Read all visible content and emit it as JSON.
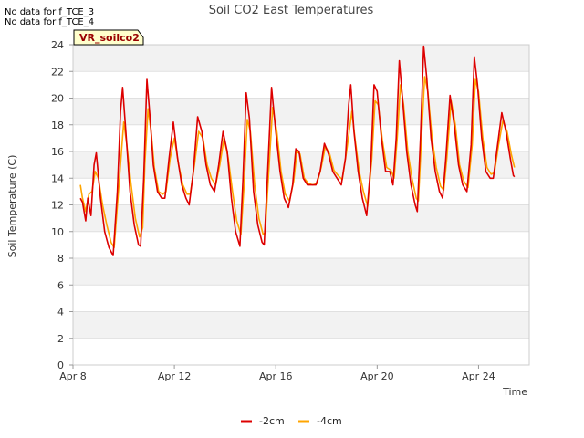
{
  "no_data_messages": [
    "No data for f_TCE_3",
    "No data for f_TCE_4"
  ],
  "badge": "VR_soilco2",
  "chart_data": {
    "type": "line",
    "title": "Soil CO2 East Temperatures",
    "xlabel": "Time",
    "ylabel": "Soil Temperature (C)",
    "xlim": [
      "2024-04-08",
      "2024-04-26"
    ],
    "ylim": [
      0,
      24
    ],
    "yticks": [
      0,
      2,
      4,
      6,
      8,
      10,
      12,
      14,
      16,
      18,
      20,
      22,
      24
    ],
    "xticks": [
      {
        "date": "2024-04-08",
        "label": "Apr 8"
      },
      {
        "date": "2024-04-12",
        "label": "Apr 12"
      },
      {
        "date": "2024-04-16",
        "label": "Apr 16"
      },
      {
        "date": "2024-04-20",
        "label": "Apr 20"
      },
      {
        "date": "2024-04-24",
        "label": "Apr 24"
      }
    ],
    "grid": true,
    "banded_background": true,
    "legend_position": "bottom-center",
    "series": [
      {
        "name": "-2cm",
        "color": "#dd0000",
        "points": [
          [
            "2024-04-08 07:00",
            12.5
          ],
          [
            "2024-04-08 09:00",
            12.2
          ],
          [
            "2024-04-08 12:00",
            10.8
          ],
          [
            "2024-04-08 14:00",
            12.5
          ],
          [
            "2024-04-08 17:00",
            11.2
          ],
          [
            "2024-04-08 20:00",
            15.0
          ],
          [
            "2024-04-08 22:00",
            15.9
          ],
          [
            "2024-04-09 02:00",
            12.5
          ],
          [
            "2024-04-09 06:00",
            10.0
          ],
          [
            "2024-04-09 10:00",
            8.8
          ],
          [
            "2024-04-09 14:00",
            8.2
          ],
          [
            "2024-04-09 18:00",
            13.0
          ],
          [
            "2024-04-09 21:00",
            19.0
          ],
          [
            "2024-04-09 23:00",
            20.8
          ],
          [
            "2024-04-10 02:00",
            17.5
          ],
          [
            "2024-04-10 06:00",
            13.0
          ],
          [
            "2024-04-10 10:00",
            10.5
          ],
          [
            "2024-04-10 14:00",
            9.0
          ],
          [
            "2024-04-10 16:00",
            8.9
          ],
          [
            "2024-04-10 19:00",
            14.0
          ],
          [
            "2024-04-10 22:00",
            21.4
          ],
          [
            "2024-04-11 01:00",
            18.5
          ],
          [
            "2024-04-11 04:00",
            15.0
          ],
          [
            "2024-04-11 08:00",
            13.0
          ],
          [
            "2024-04-11 12:00",
            12.5
          ],
          [
            "2024-04-11 15:00",
            12.5
          ],
          [
            "2024-04-11 19:00",
            15.5
          ],
          [
            "2024-04-11 23:00",
            18.2
          ],
          [
            "2024-04-12 03:00",
            15.5
          ],
          [
            "2024-04-12 07:00",
            13.5
          ],
          [
            "2024-04-12 11:00",
            12.5
          ],
          [
            "2024-04-12 14:00",
            12.0
          ],
          [
            "2024-04-12 18:00",
            14.5
          ],
          [
            "2024-04-12 22:00",
            18.6
          ],
          [
            "2024-04-13 02:00",
            17.5
          ],
          [
            "2024-04-13 06:00",
            15.0
          ],
          [
            "2024-04-13 10:00",
            13.5
          ],
          [
            "2024-04-13 14:00",
            13.0
          ],
          [
            "2024-04-13 18:00",
            15.0
          ],
          [
            "2024-04-13 22:00",
            17.5
          ],
          [
            "2024-04-14 02:00",
            16.0
          ],
          [
            "2024-04-14 06:00",
            12.5
          ],
          [
            "2024-04-14 10:00",
            10.0
          ],
          [
            "2024-04-14 14:00",
            8.9
          ],
          [
            "2024-04-14 17:00",
            14.0
          ],
          [
            "2024-04-14 20:00",
            20.4
          ],
          [
            "2024-04-14 23:00",
            18.5
          ],
          [
            "2024-04-15 03:00",
            13.0
          ],
          [
            "2024-04-15 07:00",
            10.5
          ],
          [
            "2024-04-15 11:00",
            9.2
          ],
          [
            "2024-04-15 13:00",
            9.0
          ],
          [
            "2024-04-15 16:00",
            14.0
          ],
          [
            "2024-04-15 20:00",
            20.8
          ],
          [
            "2024-04-16 00:00",
            17.5
          ],
          [
            "2024-04-16 04:00",
            14.5
          ],
          [
            "2024-04-16 08:00",
            12.5
          ],
          [
            "2024-04-16 12:00",
            11.8
          ],
          [
            "2024-04-16 16:00",
            13.5
          ],
          [
            "2024-04-16 19:00",
            16.2
          ],
          [
            "2024-04-16 22:00",
            16.0
          ],
          [
            "2024-04-17 02:00",
            14.0
          ],
          [
            "2024-04-17 06:00",
            13.5
          ],
          [
            "2024-04-17 10:00",
            13.5
          ],
          [
            "2024-04-17 14:00",
            13.5
          ],
          [
            "2024-04-17 18:00",
            14.5
          ],
          [
            "2024-04-17 22:00",
            16.6
          ],
          [
            "2024-04-18 02:00",
            15.8
          ],
          [
            "2024-04-18 06:00",
            14.5
          ],
          [
            "2024-04-18 10:00",
            14.0
          ],
          [
            "2024-04-18 14:00",
            13.5
          ],
          [
            "2024-04-18 18:00",
            15.5
          ],
          [
            "2024-04-18 21:00",
            19.5
          ],
          [
            "2024-04-18 23:00",
            21.0
          ],
          [
            "2024-04-19 02:00",
            17.5
          ],
          [
            "2024-04-19 06:00",
            14.5
          ],
          [
            "2024-04-19 10:00",
            12.5
          ],
          [
            "2024-04-19 14:00",
            11.2
          ],
          [
            "2024-04-19 18:00",
            15.0
          ],
          [
            "2024-04-19 21:00",
            21.0
          ],
          [
            "2024-04-20 00:00",
            20.5
          ],
          [
            "2024-04-20 04:00",
            17.0
          ],
          [
            "2024-04-20 08:00",
            14.5
          ],
          [
            "2024-04-20 12:00",
            14.5
          ],
          [
            "2024-04-20 15:00",
            13.5
          ],
          [
            "2024-04-20 18:00",
            17.0
          ],
          [
            "2024-04-20 21:00",
            22.8
          ],
          [
            "2024-04-21 00:00",
            20.0
          ],
          [
            "2024-04-21 04:00",
            16.0
          ],
          [
            "2024-04-21 08:00",
            13.5
          ],
          [
            "2024-04-21 12:00",
            12.0
          ],
          [
            "2024-04-21 14:00",
            11.5
          ],
          [
            "2024-04-21 17:00",
            17.0
          ],
          [
            "2024-04-21 20:00",
            23.9
          ],
          [
            "2024-04-21 23:00",
            21.5
          ],
          [
            "2024-04-22 03:00",
            17.0
          ],
          [
            "2024-04-22 07:00",
            14.5
          ],
          [
            "2024-04-22 11:00",
            13.0
          ],
          [
            "2024-04-22 14:00",
            12.5
          ],
          [
            "2024-04-22 17:00",
            15.5
          ],
          [
            "2024-04-22 21:00",
            20.2
          ],
          [
            "2024-04-23 01:00",
            18.0
          ],
          [
            "2024-04-23 05:00",
            15.0
          ],
          [
            "2024-04-23 09:00",
            13.5
          ],
          [
            "2024-04-23 13:00",
            13.0
          ],
          [
            "2024-04-23 17:00",
            16.5
          ],
          [
            "2024-04-23 20:00",
            23.1
          ],
          [
            "2024-04-23 23:00",
            21.0
          ],
          [
            "2024-04-24 03:00",
            17.0
          ],
          [
            "2024-04-24 07:00",
            14.5
          ],
          [
            "2024-04-24 11:00",
            14.0
          ],
          [
            "2024-04-24 14:00",
            14.0
          ],
          [
            "2024-04-24 18:00",
            16.5
          ],
          [
            "2024-04-24 22:00",
            18.9
          ],
          [
            "2024-04-25 02:00",
            17.5
          ],
          [
            "2024-04-25 06:00",
            15.5
          ],
          [
            "2024-04-25 09:00",
            14.2
          ],
          [
            "2024-04-25 10:00",
            14.1
          ]
        ]
      },
      {
        "name": "-4cm",
        "color": "#ffa500",
        "points": [
          [
            "2024-04-08 07:00",
            13.5
          ],
          [
            "2024-04-08 09:00",
            12.5
          ],
          [
            "2024-04-08 12:00",
            11.5
          ],
          [
            "2024-04-08 15:00",
            12.8
          ],
          [
            "2024-04-08 18:00",
            13.0
          ],
          [
            "2024-04-08 21:00",
            14.5
          ],
          [
            "2024-04-09 00:00",
            14.0
          ],
          [
            "2024-04-09 04:00",
            12.0
          ],
          [
            "2024-04-09 08:00",
            10.5
          ],
          [
            "2024-04-09 12:00",
            9.2
          ],
          [
            "2024-04-09 15:00",
            8.8
          ],
          [
            "2024-04-09 19:00",
            13.0
          ],
          [
            "2024-04-10 00:00",
            18.2
          ],
          [
            "2024-04-10 03:00",
            16.5
          ],
          [
            "2024-04-10 07:00",
            13.5
          ],
          [
            "2024-04-10 11:00",
            11.0
          ],
          [
            "2024-04-10 15:00",
            9.6
          ],
          [
            "2024-04-10 18:00",
            10.3
          ],
          [
            "2024-04-10 20:00",
            15.0
          ],
          [
            "2024-04-10 23:00",
            19.2
          ],
          [
            "2024-04-11 02:00",
            17.5
          ],
          [
            "2024-04-11 05:00",
            14.8
          ],
          [
            "2024-04-11 09:00",
            13.0
          ],
          [
            "2024-04-11 13:00",
            12.8
          ],
          [
            "2024-04-11 16:00",
            13.0
          ],
          [
            "2024-04-11 20:00",
            15.5
          ],
          [
            "2024-04-12 00:00",
            17.0
          ],
          [
            "2024-04-12 04:00",
            15.0
          ],
          [
            "2024-04-12 08:00",
            13.5
          ],
          [
            "2024-04-12 12:00",
            12.8
          ],
          [
            "2024-04-12 15:00",
            12.8
          ],
          [
            "2024-04-12 19:00",
            15.0
          ],
          [
            "2024-04-12 23:00",
            17.5
          ],
          [
            "2024-04-13 03:00",
            17.0
          ],
          [
            "2024-04-13 07:00",
            15.0
          ],
          [
            "2024-04-13 11:00",
            14.0
          ],
          [
            "2024-04-13 15:00",
            13.5
          ],
          [
            "2024-04-13 19:00",
            15.0
          ],
          [
            "2024-04-13 23:00",
            17.0
          ],
          [
            "2024-04-14 03:00",
            15.5
          ],
          [
            "2024-04-14 07:00",
            13.0
          ],
          [
            "2024-04-14 11:00",
            10.8
          ],
          [
            "2024-04-14 15:00",
            9.8
          ],
          [
            "2024-04-14 18:00",
            13.5
          ],
          [
            "2024-04-14 21:00",
            18.4
          ],
          [
            "2024-04-15 00:00",
            17.5
          ],
          [
            "2024-04-15 04:00",
            13.5
          ],
          [
            "2024-04-15 08:00",
            11.0
          ],
          [
            "2024-04-15 12:00",
            9.8
          ],
          [
            "2024-04-15 14:00",
            9.9
          ],
          [
            "2024-04-15 17:00",
            14.0
          ],
          [
            "2024-04-15 21:00",
            19.3
          ],
          [
            "2024-04-16 01:00",
            17.5
          ],
          [
            "2024-04-16 05:00",
            14.5
          ],
          [
            "2024-04-16 09:00",
            12.8
          ],
          [
            "2024-04-16 13:00",
            12.3
          ],
          [
            "2024-04-16 17:00",
            13.8
          ],
          [
            "2024-04-16 20:00",
            16.0
          ],
          [
            "2024-04-16 23:00",
            15.8
          ],
          [
            "2024-04-17 03:00",
            14.0
          ],
          [
            "2024-04-17 07:00",
            13.6
          ],
          [
            "2024-04-17 11:00",
            13.5
          ],
          [
            "2024-04-17 15:00",
            13.6
          ],
          [
            "2024-04-17 19:00",
            14.8
          ],
          [
            "2024-04-17 23:00",
            16.4
          ],
          [
            "2024-04-18 03:00",
            15.8
          ],
          [
            "2024-04-18 07:00",
            14.6
          ],
          [
            "2024-04-18 11:00",
            14.2
          ],
          [
            "2024-04-18 15:00",
            13.9
          ],
          [
            "2024-04-18 19:00",
            16.0
          ],
          [
            "2024-04-19 00:00",
            19.0
          ],
          [
            "2024-04-19 03:00",
            17.0
          ],
          [
            "2024-04-19 07:00",
            14.5
          ],
          [
            "2024-04-19 11:00",
            13.0
          ],
          [
            "2024-04-19 15:00",
            11.9
          ],
          [
            "2024-04-19 19:00",
            15.5
          ],
          [
            "2024-04-19 22:00",
            19.8
          ],
          [
            "2024-04-20 01:00",
            19.5
          ],
          [
            "2024-04-20 05:00",
            16.8
          ],
          [
            "2024-04-20 09:00",
            14.8
          ],
          [
            "2024-04-20 13:00",
            14.6
          ],
          [
            "2024-04-20 16:00",
            14.0
          ],
          [
            "2024-04-20 19:00",
            17.0
          ],
          [
            "2024-04-20 22:00",
            21.0
          ],
          [
            "2024-04-21 01:00",
            19.5
          ],
          [
            "2024-04-21 05:00",
            16.0
          ],
          [
            "2024-04-21 09:00",
            14.0
          ],
          [
            "2024-04-21 13:00",
            12.5
          ],
          [
            "2024-04-21 15:00",
            12.3
          ],
          [
            "2024-04-21 18:00",
            17.0
          ],
          [
            "2024-04-21 21:00",
            21.6
          ],
          [
            "2024-04-22 00:00",
            20.5
          ],
          [
            "2024-04-22 04:00",
            17.0
          ],
          [
            "2024-04-22 08:00",
            14.8
          ],
          [
            "2024-04-22 12:00",
            13.4
          ],
          [
            "2024-04-22 15:00",
            13.1
          ],
          [
            "2024-04-22 18:00",
            15.5
          ],
          [
            "2024-04-22 22:00",
            19.8
          ],
          [
            "2024-04-23 02:00",
            18.0
          ],
          [
            "2024-04-23 06:00",
            15.0
          ],
          [
            "2024-04-23 10:00",
            13.8
          ],
          [
            "2024-04-23 14:00",
            13.3
          ],
          [
            "2024-04-23 18:00",
            16.5
          ],
          [
            "2024-04-23 21:00",
            21.4
          ],
          [
            "2024-04-24 00:00",
            20.5
          ],
          [
            "2024-04-24 04:00",
            17.0
          ],
          [
            "2024-04-24 08:00",
            14.8
          ],
          [
            "2024-04-24 12:00",
            14.3
          ],
          [
            "2024-04-24 15:00",
            14.4
          ],
          [
            "2024-04-24 19:00",
            16.5
          ],
          [
            "2024-04-24 23:00",
            18.3
          ],
          [
            "2024-04-25 03:00",
            17.5
          ],
          [
            "2024-04-25 07:00",
            15.8
          ],
          [
            "2024-04-25 10:00",
            14.8
          ]
        ]
      }
    ]
  }
}
